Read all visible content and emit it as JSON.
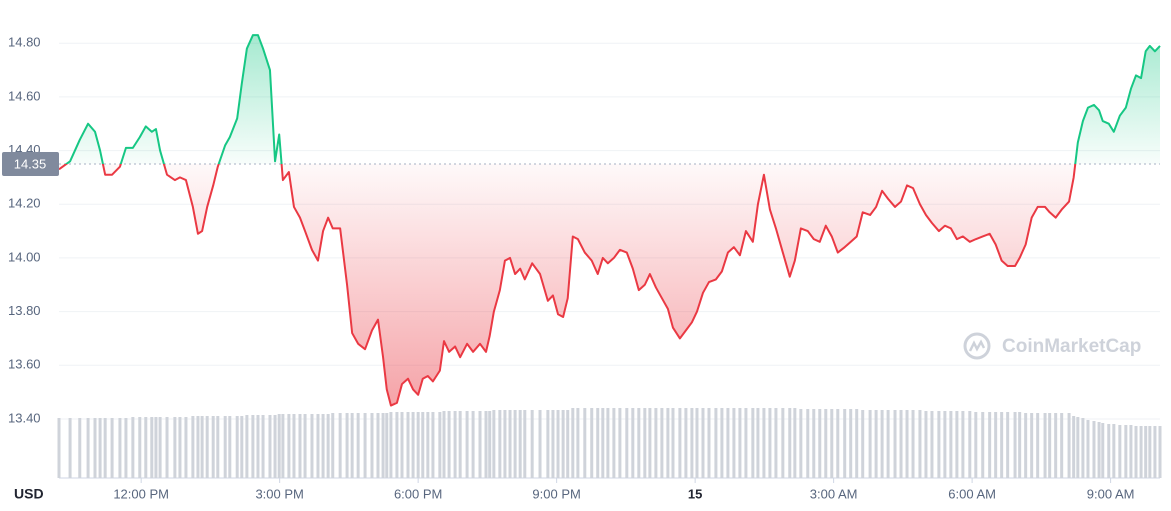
{
  "chart_data": {
    "type": "line",
    "currency": "USD",
    "watermark": "CoinMarketCap",
    "baseline": 14.35,
    "up_color": "#16c784",
    "down_color": "#ea3943",
    "volume_color": "#cfd3da",
    "ylim": [
      13.18,
      14.92
    ],
    "yticks": [
      {
        "value": 14.8,
        "label": "14.80"
      },
      {
        "value": 14.6,
        "label": "14.60"
      },
      {
        "value": 14.4,
        "label": "14.40"
      },
      {
        "value": 14.2,
        "label": "14.20"
      },
      {
        "value": 14.0,
        "label": "14.00"
      },
      {
        "value": 13.8,
        "label": "13.80"
      },
      {
        "value": 13.6,
        "label": "13.60"
      },
      {
        "value": 13.4,
        "label": "13.40"
      }
    ],
    "grid": true,
    "xlim": [
      10.22,
      34.07
    ],
    "xticks": [
      {
        "value": 12,
        "label": "12:00 PM"
      },
      {
        "value": 15,
        "label": "3:00 PM"
      },
      {
        "value": 18,
        "label": "6:00 PM"
      },
      {
        "value": 21,
        "label": "9:00 PM"
      },
      {
        "value": 24,
        "label": "15",
        "bold": true
      },
      {
        "value": 27,
        "label": "3:00 AM"
      },
      {
        "value": 30,
        "label": "6:00 AM"
      },
      {
        "value": 33,
        "label": "9:00 AM"
      }
    ],
    "x": [
      10.22,
      10.46,
      10.67,
      10.85,
      11.0,
      11.11,
      11.22,
      11.37,
      11.54,
      11.67,
      11.82,
      11.97,
      12.1,
      12.23,
      12.32,
      12.41,
      12.56,
      12.73,
      12.84,
      12.97,
      13.12,
      13.23,
      13.32,
      13.43,
      13.56,
      13.66,
      13.82,
      13.92,
      14.08,
      14.18,
      14.29,
      14.42,
      14.53,
      14.64,
      14.79,
      14.9,
      14.99,
      15.07,
      15.2,
      15.31,
      15.44,
      15.55,
      15.7,
      15.83,
      15.94,
      16.05,
      16.15,
      16.31,
      16.46,
      16.57,
      16.7,
      16.85,
      17.0,
      17.13,
      17.24,
      17.32,
      17.41,
      17.54,
      17.65,
      17.78,
      17.89,
      18.0,
      18.1,
      18.21,
      18.32,
      18.47,
      18.56,
      18.67,
      18.8,
      18.91,
      19.06,
      19.19,
      19.34,
      19.47,
      19.55,
      19.64,
      19.77,
      19.88,
      19.99,
      20.1,
      20.21,
      20.31,
      20.47,
      20.64,
      20.81,
      20.92,
      21.03,
      21.14,
      21.24,
      21.35,
      21.46,
      21.61,
      21.76,
      21.89,
      22.0,
      22.11,
      22.24,
      22.37,
      22.52,
      22.65,
      22.78,
      22.91,
      23.02,
      23.15,
      23.28,
      23.41,
      23.52,
      23.67,
      23.8,
      23.93,
      24.04,
      24.17,
      24.3,
      24.45,
      24.58,
      24.71,
      24.84,
      24.97,
      25.1,
      25.25,
      25.36,
      25.49,
      25.62,
      25.75,
      25.9,
      26.05,
      26.16,
      26.29,
      26.44,
      26.57,
      26.7,
      26.83,
      26.96,
      27.09,
      27.24,
      27.37,
      27.5,
      27.63,
      27.79,
      27.92,
      28.05,
      28.18,
      28.33,
      28.46,
      28.59,
      28.72,
      28.87,
      29.0,
      29.13,
      29.28,
      29.41,
      29.54,
      29.67,
      29.8,
      29.95,
      30.08,
      30.23,
      30.38,
      30.51,
      30.64,
      30.77,
      30.93,
      31.03,
      31.16,
      31.29,
      31.42,
      31.58,
      31.68,
      31.81,
      31.94,
      32.1,
      32.2,
      32.29,
      32.4,
      32.51,
      32.64,
      32.75,
      32.83,
      32.96,
      33.07,
      33.2,
      33.33,
      33.44,
      33.55,
      33.66,
      33.76,
      33.85,
      33.96,
      34.07
    ],
    "values": [
      14.33,
      14.36,
      14.44,
      14.5,
      14.47,
      14.4,
      14.31,
      14.31,
      14.34,
      14.41,
      14.41,
      14.45,
      14.49,
      14.47,
      14.48,
      14.4,
      14.31,
      14.29,
      14.3,
      14.29,
      14.19,
      14.09,
      14.1,
      14.19,
      14.27,
      14.34,
      14.42,
      14.45,
      14.52,
      14.65,
      14.78,
      14.83,
      14.83,
      14.78,
      14.7,
      14.36,
      14.46,
      14.29,
      14.32,
      14.19,
      14.15,
      14.1,
      14.03,
      13.99,
      14.1,
      14.15,
      14.11,
      14.11,
      13.9,
      13.72,
      13.68,
      13.66,
      13.73,
      13.77,
      13.63,
      13.51,
      13.45,
      13.46,
      13.53,
      13.55,
      13.51,
      13.49,
      13.55,
      13.56,
      13.54,
      13.58,
      13.69,
      13.65,
      13.67,
      13.63,
      13.68,
      13.65,
      13.68,
      13.65,
      13.71,
      13.8,
      13.88,
      13.99,
      14.0,
      13.94,
      13.96,
      13.92,
      13.98,
      13.94,
      13.84,
      13.86,
      13.79,
      13.78,
      13.85,
      14.08,
      14.07,
      14.02,
      13.99,
      13.94,
      14.0,
      13.98,
      14.0,
      14.03,
      14.02,
      13.96,
      13.88,
      13.9,
      13.94,
      13.89,
      13.85,
      13.81,
      13.74,
      13.7,
      13.73,
      13.76,
      13.8,
      13.87,
      13.91,
      13.92,
      13.95,
      14.02,
      14.04,
      14.01,
      14.1,
      14.06,
      14.2,
      14.31,
      14.18,
      14.11,
      14.02,
      13.93,
      13.99,
      14.11,
      14.1,
      14.07,
      14.06,
      14.12,
      14.08,
      14.02,
      14.04,
      14.06,
      14.08,
      14.17,
      14.16,
      14.19,
      14.25,
      14.22,
      14.19,
      14.21,
      14.27,
      14.26,
      14.2,
      14.16,
      14.13,
      14.1,
      14.12,
      14.11,
      14.07,
      14.08,
      14.06,
      14.07,
      14.08,
      14.09,
      14.05,
      13.99,
      13.97,
      13.97,
      14.0,
      14.05,
      14.15,
      14.19,
      14.19,
      14.17,
      14.15,
      14.18,
      14.21,
      14.3,
      14.43,
      14.51,
      14.56,
      14.57,
      14.55,
      14.51,
      14.5,
      14.47,
      14.53,
      14.56,
      14.63,
      14.68,
      14.67,
      14.77,
      14.79,
      14.77,
      14.79
    ],
    "volume_lim": [
      0,
      100
    ],
    "volume": [
      60,
      60,
      60,
      60,
      60,
      60,
      60,
      60,
      60,
      60,
      61,
      61,
      61,
      61,
      61,
      61,
      61,
      61,
      61,
      61,
      62,
      62,
      62,
      62,
      62,
      62,
      62,
      62,
      62,
      62,
      63,
      63,
      63,
      63,
      63,
      63,
      64,
      64,
      64,
      64,
      64,
      64,
      64,
      64,
      64,
      64,
      65,
      65,
      65,
      65,
      65,
      65,
      65,
      65,
      65,
      65,
      66,
      66,
      66,
      66,
      66,
      66,
      66,
      66,
      66,
      66,
      67,
      67,
      67,
      67,
      67,
      67,
      67,
      67,
      67,
      68,
      68,
      68,
      68,
      68,
      68,
      68,
      68,
      68,
      68,
      68,
      68,
      68,
      68,
      70,
      70,
      70,
      70,
      70,
      70,
      70,
      70,
      70,
      70,
      70,
      70,
      70,
      70,
      70,
      70,
      70,
      70,
      70,
      70,
      70,
      70,
      70,
      70,
      70,
      70,
      70,
      70,
      70,
      70,
      70,
      70,
      70,
      70,
      70,
      70,
      70,
      70,
      69,
      69,
      69,
      69,
      69,
      69,
      69,
      69,
      69,
      69,
      68,
      68,
      68,
      68,
      68,
      68,
      68,
      68,
      68,
      68,
      67,
      67,
      67,
      67,
      67,
      67,
      67,
      67,
      66,
      66,
      66,
      66,
      66,
      66,
      66,
      66,
      65,
      65,
      65,
      65,
      65,
      65,
      65,
      65,
      62,
      61,
      60,
      58,
      57,
      56,
      55,
      54,
      54,
      53,
      53,
      53,
      52,
      52,
      52,
      52,
      52,
      52
    ]
  }
}
